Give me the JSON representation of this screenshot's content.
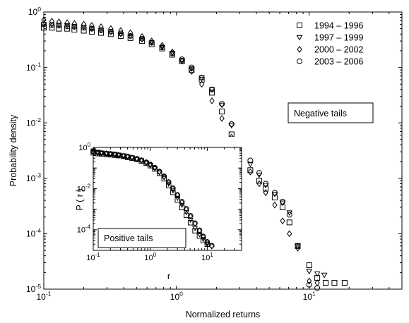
{
  "chart_data": [
    {
      "type": "scatter",
      "title": "",
      "xlabel": "Normalized returns",
      "ylabel": "Probability density",
      "xscale": "log",
      "yscale": "log",
      "xlim": [
        0.1,
        50
      ],
      "ylim": [
        1e-05,
        1
      ],
      "x_ticks": [
        {
          "v": 0.1,
          "b": "10",
          "e": "-1"
        },
        {
          "v": 1,
          "b": "10",
          "e": "0"
        },
        {
          "v": 10,
          "b": "10",
          "e": "1"
        }
      ],
      "y_ticks": [
        {
          "v": 1e-05,
          "b": "10",
          "e": "-5"
        },
        {
          "v": 0.0001,
          "b": "10",
          "e": "-4"
        },
        {
          "v": 0.001,
          "b": "10",
          "e": "-3"
        },
        {
          "v": 0.01,
          "b": "10",
          "e": "-2"
        },
        {
          "v": 0.1,
          "b": "10",
          "e": "-1"
        },
        {
          "v": 1,
          "b": "10",
          "e": "0"
        }
      ],
      "annotation": "Negative tails",
      "legend_position": "top-right",
      "series": [
        {
          "name": "1994 – 1996",
          "marker": "square",
          "points": [
            [
              0.1,
              0.52
            ],
            [
              0.115,
              0.52
            ],
            [
              0.13,
              0.5
            ],
            [
              0.15,
              0.5
            ],
            [
              0.17,
              0.48
            ],
            [
              0.2,
              0.46
            ],
            [
              0.23,
              0.44
            ],
            [
              0.27,
              0.42
            ],
            [
              0.32,
              0.4
            ],
            [
              0.38,
              0.37
            ],
            [
              0.45,
              0.34
            ],
            [
              0.55,
              0.3
            ],
            [
              0.65,
              0.26
            ],
            [
              0.78,
              0.22
            ],
            [
              0.93,
              0.17
            ],
            [
              1.1,
              0.13
            ],
            [
              1.3,
              0.09
            ],
            [
              1.55,
              0.06
            ],
            [
              1.85,
              0.035
            ],
            [
              2.2,
              0.016
            ],
            [
              2.6,
              0.0062
            ],
            [
              3.1,
              0.0027
            ],
            [
              3.6,
              0.0014
            ],
            [
              4.2,
              0.0009
            ],
            [
              4.7,
              0.00065
            ],
            [
              5.5,
              0.00045
            ],
            [
              6.3,
              0.0003
            ],
            [
              7.1,
              0.00016
            ],
            [
              8.2,
              6e-05
            ],
            [
              10,
              2.7e-05
            ],
            [
              11.5,
              1.6e-05
            ],
            [
              13.3,
              1.3e-05
            ],
            [
              15.5,
              1.3e-05
            ],
            [
              18.5,
              1.3e-05
            ]
          ]
        },
        {
          "name": "1997 – 1999",
          "marker": "triangle-down",
          "points": [
            [
              0.1,
              0.6
            ],
            [
              0.115,
              0.59
            ],
            [
              0.13,
              0.58
            ],
            [
              0.15,
              0.57
            ],
            [
              0.17,
              0.55
            ],
            [
              0.2,
              0.53
            ],
            [
              0.23,
              0.5
            ],
            [
              0.27,
              0.47
            ],
            [
              0.32,
              0.44
            ],
            [
              0.38,
              0.4
            ],
            [
              0.45,
              0.37
            ],
            [
              0.55,
              0.32
            ],
            [
              0.65,
              0.28
            ],
            [
              0.78,
              0.23
            ],
            [
              0.93,
              0.18
            ],
            [
              1.1,
              0.135
            ],
            [
              1.3,
              0.095
            ],
            [
              1.55,
              0.065
            ],
            [
              1.85,
              0.04
            ],
            [
              2.2,
              0.021
            ],
            [
              2.6,
              0.009
            ],
            [
              3.1,
              0.0036
            ],
            [
              3.6,
              0.0018
            ],
            [
              4.2,
              0.00115
            ],
            [
              4.7,
              0.00075
            ],
            [
              5.5,
              0.00052
            ],
            [
              6.3,
              0.00036
            ],
            [
              7.1,
              0.00024
            ],
            [
              8.2,
              6e-05
            ],
            [
              10,
              2.1e-05
            ],
            [
              11.5,
              1.9e-05
            ],
            [
              13,
              1.8e-05
            ]
          ]
        },
        {
          "name": "2000 – 2002",
          "marker": "diamond",
          "points": [
            [
              0.1,
              0.72
            ],
            [
              0.115,
              0.68
            ],
            [
              0.13,
              0.66
            ],
            [
              0.15,
              0.64
            ],
            [
              0.17,
              0.62
            ],
            [
              0.2,
              0.6
            ],
            [
              0.23,
              0.57
            ],
            [
              0.27,
              0.54
            ],
            [
              0.32,
              0.5
            ],
            [
              0.38,
              0.46
            ],
            [
              0.45,
              0.42
            ],
            [
              0.55,
              0.36
            ],
            [
              0.65,
              0.3
            ],
            [
              0.78,
              0.25
            ],
            [
              0.93,
              0.19
            ],
            [
              1.1,
              0.13
            ],
            [
              1.3,
              0.085
            ],
            [
              1.55,
              0.05
            ],
            [
              1.85,
              0.025
            ],
            [
              2.2,
              0.012
            ],
            [
              2.6,
              0.0055
            ],
            [
              3.1,
              0.0025
            ],
            [
              3.6,
              0.0013
            ],
            [
              4.2,
              0.0008
            ],
            [
              4.7,
              0.00055
            ],
            [
              5.5,
              0.00033
            ],
            [
              6.3,
              0.00017
            ],
            [
              7.1,
              0.0001
            ],
            [
              8.2,
              5.5e-05
            ],
            [
              10,
              1.4e-05
            ],
            [
              11.5,
              1.3e-05
            ]
          ]
        },
        {
          "name": "2003 – 2006",
          "marker": "circle",
          "points": [
            [
              0.1,
              0.6
            ],
            [
              0.115,
              0.58
            ],
            [
              0.13,
              0.57
            ],
            [
              0.15,
              0.55
            ],
            [
              0.17,
              0.54
            ],
            [
              0.2,
              0.52
            ],
            [
              0.23,
              0.5
            ],
            [
              0.27,
              0.47
            ],
            [
              0.32,
              0.44
            ],
            [
              0.38,
              0.41
            ],
            [
              0.45,
              0.37
            ],
            [
              0.55,
              0.33
            ],
            [
              0.65,
              0.28
            ],
            [
              0.78,
              0.23
            ],
            [
              0.93,
              0.18
            ],
            [
              1.1,
              0.14
            ],
            [
              1.3,
              0.1
            ],
            [
              1.55,
              0.065
            ],
            [
              1.85,
              0.04
            ],
            [
              2.2,
              0.022
            ],
            [
              2.6,
              0.0095
            ],
            [
              3.1,
              0.0042
            ],
            [
              3.6,
              0.0021
            ],
            [
              4.2,
              0.00125
            ],
            [
              4.7,
              0.0008
            ],
            [
              5.5,
              0.00055
            ],
            [
              6.3,
              0.00038
            ],
            [
              7.1,
              0.00022
            ],
            [
              8.2,
              6e-05
            ],
            [
              10,
              1.2e-05
            ],
            [
              11.5,
              1.05e-05
            ]
          ]
        }
      ]
    },
    {
      "type": "scatter",
      "title": "",
      "xlabel": "r",
      "ylabel": "P ( r )",
      "xscale": "log",
      "yscale": "log",
      "xlim": [
        0.1,
        40
      ],
      "ylim": [
        1e-05,
        1
      ],
      "x_ticks": [
        {
          "v": 0.1,
          "b": "10",
          "e": "-1"
        },
        {
          "v": 1,
          "b": "10",
          "e": "0"
        },
        {
          "v": 10,
          "b": "10",
          "e": "1"
        }
      ],
      "y_ticks": [
        {
          "v": 0.0001,
          "b": "10",
          "e": "-4"
        },
        {
          "v": 0.01,
          "b": "10",
          "e": "-2"
        },
        {
          "v": 1,
          "b": "10",
          "e": "0"
        }
      ],
      "annotation": "Positive tails",
      "series": [
        {
          "marker": "square",
          "points": [
            [
              0.1,
              0.55
            ],
            [
              0.12,
              0.5
            ],
            [
              0.14,
              0.48
            ],
            [
              0.17,
              0.46
            ],
            [
              0.2,
              0.44
            ],
            [
              0.24,
              0.42
            ],
            [
              0.28,
              0.4
            ],
            [
              0.34,
              0.37
            ],
            [
              0.4,
              0.33
            ],
            [
              0.48,
              0.3
            ],
            [
              0.58,
              0.26
            ],
            [
              0.7,
              0.22
            ],
            [
              0.85,
              0.17
            ],
            [
              1.0,
              0.13
            ],
            [
              1.2,
              0.09
            ],
            [
              1.45,
              0.055
            ],
            [
              1.75,
              0.03
            ],
            [
              2.1,
              0.014
            ],
            [
              2.5,
              0.0065
            ],
            [
              3.0,
              0.0028
            ],
            [
              3.6,
              0.0012
            ],
            [
              4.3,
              0.0005
            ],
            [
              5.1,
              0.00022
            ],
            [
              6.1,
              9e-05
            ],
            [
              7.3,
              5e-05
            ],
            [
              8.5,
              3e-05
            ],
            [
              10.0,
              2e-05
            ]
          ]
        },
        {
          "marker": "triangle-down",
          "points": [
            [
              0.1,
              0.7
            ],
            [
              0.12,
              0.6
            ],
            [
              0.14,
              0.55
            ],
            [
              0.17,
              0.52
            ],
            [
              0.2,
              0.5
            ],
            [
              0.24,
              0.47
            ],
            [
              0.28,
              0.44
            ],
            [
              0.34,
              0.4
            ],
            [
              0.4,
              0.36
            ],
            [
              0.48,
              0.32
            ],
            [
              0.58,
              0.27
            ],
            [
              0.7,
              0.23
            ],
            [
              0.85,
              0.18
            ],
            [
              1.0,
              0.14
            ],
            [
              1.2,
              0.1
            ],
            [
              1.45,
              0.06
            ],
            [
              1.75,
              0.035
            ],
            [
              2.1,
              0.017
            ],
            [
              2.5,
              0.008
            ],
            [
              3.0,
              0.0035
            ],
            [
              3.6,
              0.0016
            ],
            [
              4.3,
              0.0007
            ],
            [
              5.1,
              0.0003
            ],
            [
              6.1,
              0.00012
            ],
            [
              7.3,
              6e-05
            ],
            [
              8.5,
              3.5e-05
            ],
            [
              10.0,
              2e-05
            ]
          ]
        },
        {
          "marker": "diamond",
          "points": [
            [
              0.1,
              0.6
            ],
            [
              0.12,
              0.55
            ],
            [
              0.14,
              0.52
            ],
            [
              0.17,
              0.5
            ],
            [
              0.2,
              0.47
            ],
            [
              0.24,
              0.45
            ],
            [
              0.28,
              0.42
            ],
            [
              0.34,
              0.38
            ],
            [
              0.4,
              0.35
            ],
            [
              0.48,
              0.31
            ],
            [
              0.58,
              0.27
            ],
            [
              0.7,
              0.23
            ],
            [
              0.85,
              0.18
            ],
            [
              1.0,
              0.14
            ],
            [
              1.2,
              0.1
            ],
            [
              1.45,
              0.065
            ],
            [
              1.75,
              0.038
            ],
            [
              2.1,
              0.02
            ],
            [
              2.5,
              0.01
            ],
            [
              3.0,
              0.0048
            ],
            [
              3.6,
              0.0022
            ],
            [
              4.3,
              0.001
            ],
            [
              5.1,
              0.00045
            ],
            [
              6.1,
              0.0002
            ],
            [
              7.3,
              9e-05
            ],
            [
              8.5,
              4.5e-05
            ],
            [
              10.0,
              2.5e-05
            ],
            [
              12.0,
              1.6e-05
            ]
          ]
        },
        {
          "marker": "circle",
          "points": [
            [
              0.1,
              0.62
            ],
            [
              0.12,
              0.56
            ],
            [
              0.14,
              0.53
            ],
            [
              0.17,
              0.5
            ],
            [
              0.2,
              0.48
            ],
            [
              0.24,
              0.45
            ],
            [
              0.28,
              0.42
            ],
            [
              0.34,
              0.39
            ],
            [
              0.4,
              0.36
            ],
            [
              0.48,
              0.32
            ],
            [
              0.58,
              0.28
            ],
            [
              0.7,
              0.24
            ],
            [
              0.85,
              0.19
            ],
            [
              1.0,
              0.15
            ],
            [
              1.2,
              0.105
            ],
            [
              1.45,
              0.068
            ],
            [
              1.75,
              0.04
            ],
            [
              2.1,
              0.021
            ],
            [
              2.5,
              0.0105
            ],
            [
              3.0,
              0.005
            ],
            [
              3.6,
              0.0023
            ],
            [
              4.3,
              0.00105
            ],
            [
              5.1,
              0.00048
            ],
            [
              6.1,
              0.00021
            ],
            [
              7.3,
              9.5e-05
            ],
            [
              8.5,
              4.8e-05
            ],
            [
              10.0,
              2.6e-05
            ],
            [
              12.0,
              1.7e-05
            ]
          ]
        }
      ]
    }
  ]
}
